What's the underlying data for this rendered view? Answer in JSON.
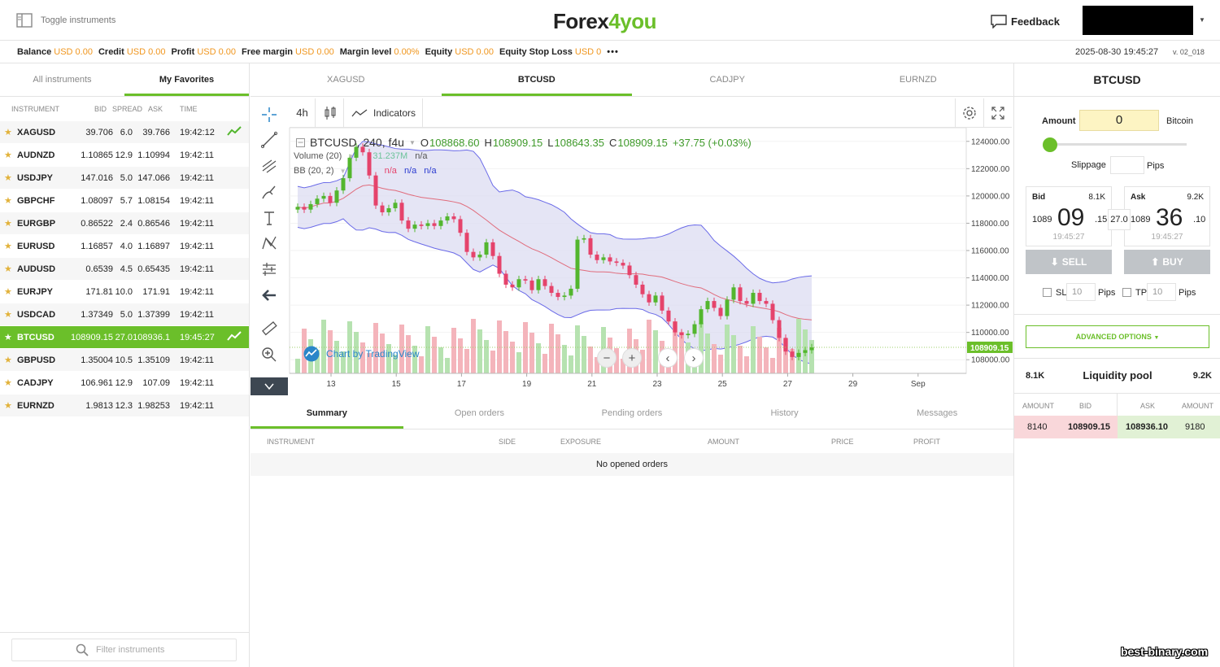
{
  "header": {
    "toggle_label": "Toggle instruments",
    "logo": {
      "part1": "Forex",
      "part2": "4",
      "part3": "you"
    },
    "feedback_label": "Feedback"
  },
  "statusbar": {
    "items": [
      {
        "label": "Balance",
        "value": "USD 0.00"
      },
      {
        "label": "Credit",
        "value": "USD 0.00"
      },
      {
        "label": "Profit",
        "value": "USD 0.00"
      },
      {
        "label": "Free margin",
        "value": "USD 0.00"
      },
      {
        "label": "Margin level",
        "value": "0.00%"
      },
      {
        "label": "Equity",
        "value": "USD 0.00"
      },
      {
        "label": "Equity Stop Loss",
        "value": "USD 0"
      }
    ],
    "more": "•••",
    "datetime": "2025-08-30 19:45:27",
    "version": "v. 02_018"
  },
  "left": {
    "tabs": [
      "All instruments",
      "My Favorites"
    ],
    "columns": {
      "instrument": "INSTRUMENT",
      "bid": "BID",
      "spread": "SPREAD",
      "ask": "ASK",
      "time": "TIME"
    },
    "rows": [
      {
        "name": "XAGUSD",
        "bid": "39.706",
        "spread": "6.0",
        "ask": "39.766",
        "time": "19:42:12",
        "trend": true,
        "selected": false
      },
      {
        "name": "AUDNZD",
        "bid": "1.10865",
        "spread": "12.9",
        "ask": "1.10994",
        "time": "19:42:11",
        "trend": false,
        "selected": false
      },
      {
        "name": "USDJPY",
        "bid": "147.016",
        "spread": "5.0",
        "ask": "147.066",
        "time": "19:42:11",
        "trend": false,
        "selected": false
      },
      {
        "name": "GBPCHF",
        "bid": "1.08097",
        "spread": "5.7",
        "ask": "1.08154",
        "time": "19:42:11",
        "trend": false,
        "selected": false
      },
      {
        "name": "EURGBP",
        "bid": "0.86522",
        "spread": "2.4",
        "ask": "0.86546",
        "time": "19:42:11",
        "trend": false,
        "selected": false
      },
      {
        "name": "EURUSD",
        "bid": "1.16857",
        "spread": "4.0",
        "ask": "1.16897",
        "time": "19:42:11",
        "trend": false,
        "selected": false
      },
      {
        "name": "AUDUSD",
        "bid": "0.6539",
        "spread": "4.5",
        "ask": "0.65435",
        "time": "19:42:11",
        "trend": false,
        "selected": false
      },
      {
        "name": "EURJPY",
        "bid": "171.81",
        "spread": "10.0",
        "ask": "171.91",
        "time": "19:42:11",
        "trend": false,
        "selected": false
      },
      {
        "name": "USDCAD",
        "bid": "1.37349",
        "spread": "5.0",
        "ask": "1.37399",
        "time": "19:42:11",
        "trend": false,
        "selected": false
      },
      {
        "name": "BTCUSD",
        "bid": "108909.15",
        "spread": "27.0",
        "ask": "108936.1",
        "time": "19:45:27",
        "trend": true,
        "selected": true
      },
      {
        "name": "GBPUSD",
        "bid": "1.35004",
        "spread": "10.5",
        "ask": "1.35109",
        "time": "19:42:11",
        "trend": false,
        "selected": false
      },
      {
        "name": "CADJPY",
        "bid": "106.961",
        "spread": "12.9",
        "ask": "107.09",
        "time": "19:42:11",
        "trend": false,
        "selected": false
      },
      {
        "name": "EURNZD",
        "bid": "1.9813",
        "spread": "12.3",
        "ask": "1.98253",
        "time": "19:42:11",
        "trend": false,
        "selected": false
      }
    ],
    "filter_placeholder": "Filter instruments"
  },
  "center": {
    "tabs": [
      "XAGUSD",
      "BTCUSD",
      "CADJPY",
      "EURNZD"
    ],
    "active_tab": 1,
    "toolbar": {
      "timeframe": "4h",
      "indicators": "Indicators"
    },
    "legend": {
      "symbol": "BTCUSD, 240, f4u",
      "o_label": "O",
      "o": "108868.60",
      "h_label": "H",
      "h": "108909.15",
      "l_label": "L",
      "l": "108643.35",
      "c_label": "C",
      "c": "108909.15",
      "change": "+37.75 (+0.03%)",
      "volume_label": "Volume (20)",
      "volume_value": "31.237M",
      "volume_na": "n/a",
      "bb_label": "BB (20, 2)",
      "bb_na": [
        "n/a",
        "n/a",
        "n/a"
      ]
    },
    "attribution": "Chart by TradingView",
    "bottom_tabs": [
      "Summary",
      "Open orders",
      "Pending orders",
      "History",
      "Messages"
    ],
    "order_columns": [
      "INSTRUMENT",
      "SIDE",
      "EXPOSURE",
      "AMOUNT",
      "PRICE",
      "PROFIT"
    ],
    "no_orders": "No opened orders"
  },
  "chart_data": {
    "type": "candlestick",
    "symbol": "BTCUSD",
    "interval": "240",
    "y_ticks": [
      "124000.00",
      "122000.00",
      "120000.00",
      "118000.00",
      "116000.00",
      "114000.00",
      "112000.00",
      "110000.00",
      "108000.00"
    ],
    "x_ticks": [
      "13",
      "15",
      "17",
      "19",
      "21",
      "23",
      "25",
      "27",
      "29",
      "Sep"
    ],
    "ylim": [
      107000,
      125000
    ],
    "last_price": "108909.15",
    "colors": {
      "up": "#53b62e",
      "down": "#e5436b",
      "band_fill": "#dcdcf2",
      "band_line": "#6a6ae8",
      "mid_line": "#e06c7c",
      "vol_up": "#b6e2b0",
      "vol_down": "#f4b4bb"
    },
    "close_series": [
      119200,
      119000,
      119400,
      119800,
      120000,
      119500,
      120400,
      121300,
      122800,
      123600,
      123200,
      121500,
      119300,
      118800,
      119100,
      119500,
      118200,
      117600,
      117900,
      117800,
      118000,
      117800,
      118200,
      118500,
      118300,
      117300,
      115900,
      115500,
      115700,
      116600,
      115600,
      114300,
      113500,
      113300,
      113900,
      113800,
      113100,
      113900,
      113400,
      112900,
      112600,
      112700,
      113200,
      116800,
      116900,
      115700,
      115300,
      115500,
      115200,
      115100,
      114900,
      114200,
      113500,
      112800,
      112200,
      112700,
      111600,
      110800,
      110000,
      109800,
      109900,
      110600,
      111700,
      112300,
      111800,
      111200,
      112400,
      113300,
      112300,
      112100,
      112900,
      112300,
      112100,
      110900,
      109600,
      108600,
      108200,
      108500,
      108700,
      108909
    ]
  },
  "right": {
    "title": "BTCUSD",
    "amount_label": "Amount",
    "amount_value": "0",
    "amount_unit": "Bitcoin",
    "slippage_label": "Slippage",
    "slippage_unit": "Pips",
    "bid": {
      "label": "Bid",
      "volume": "8.1K",
      "prefix": "1089",
      "big": "09",
      "suffix": ".15",
      "time": "19:45:27"
    },
    "ask": {
      "label": "Ask",
      "volume": "9.2K",
      "prefix": "1089",
      "big": "36",
      "suffix": ".10",
      "time": "19:45:27"
    },
    "spread": "27.0",
    "sell_label": "SELL",
    "buy_label": "BUY",
    "sl_label": "SL",
    "sl_value": "10",
    "tp_label": "TP",
    "tp_value": "10",
    "pips_label": "Pips",
    "advanced_label": "ADVANCED OPTIONS",
    "liquidity": {
      "title": "Liquidity pool",
      "bid_volume": "8.1K",
      "ask_volume": "9.2K",
      "columns": [
        "AMOUNT",
        "BID",
        "ASK",
        "AMOUNT"
      ],
      "row": {
        "bid_amount": "8140",
        "bid": "108909.15",
        "ask": "108936.10",
        "ask_amount": "9180"
      }
    }
  },
  "watermark": "best-binary.com"
}
